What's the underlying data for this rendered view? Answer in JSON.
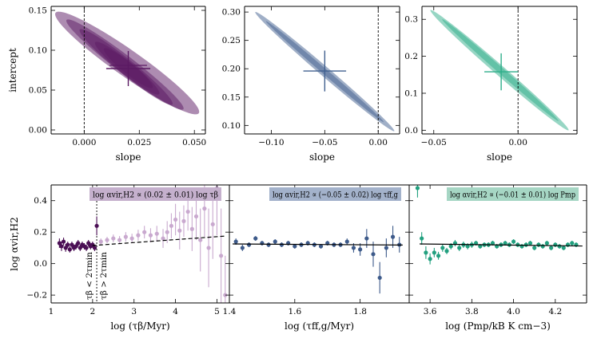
{
  "chart_data": [
    {
      "type": "scatter",
      "panel": "top-left",
      "title": "",
      "xlabel": "slope",
      "ylabel": "intercept",
      "xlim": [
        -0.015,
        0.055
      ],
      "ylim": [
        -0.005,
        0.155
      ],
      "xticks": [
        0.0,
        0.025,
        0.05
      ],
      "xtick_labels": [
        "0.000",
        "0.025",
        "0.050"
      ],
      "yticks": [
        0.0,
        0.05,
        0.1,
        0.15
      ],
      "ytick_labels": [
        "0.00",
        "0.05",
        "0.10",
        "0.15"
      ],
      "color": "#5b1a63",
      "reference_line_x": 0.0,
      "ellipses": [
        {
          "x1": -0.013,
          "y1": 0.147,
          "x2": 0.052,
          "y2": 0.021,
          "half_width": 0.006
        },
        {
          "x1": -0.008,
          "y1": 0.138,
          "x2": 0.045,
          "y2": 0.026,
          "half_width": 0.004
        },
        {
          "x1": -0.002,
          "y1": 0.126,
          "x2": 0.04,
          "y2": 0.032,
          "half_width": 0.0035
        },
        {
          "x1": 0.005,
          "y1": 0.11,
          "x2": 0.034,
          "y2": 0.045,
          "half_width": 0.003
        },
        {
          "x1": 0.009,
          "y1": 0.102,
          "x2": 0.031,
          "y2": 0.053,
          "half_width": 0.0025
        }
      ],
      "estimate": {
        "slope": 0.02,
        "slope_err": 0.01,
        "intercept": 0.077,
        "intercept_err": 0.022
      }
    },
    {
      "type": "scatter",
      "panel": "top-middle",
      "title": "",
      "xlabel": "slope",
      "ylabel": "",
      "xlim": [
        -0.125,
        0.02
      ],
      "ylim": [
        0.085,
        0.31
      ],
      "xticks": [
        -0.1,
        -0.05,
        0.0
      ],
      "xtick_labels": [
        "−0.10",
        "−0.05",
        "0.00"
      ],
      "yticks": [
        0.1,
        0.15,
        0.2,
        0.25,
        0.3
      ],
      "ytick_labels": [
        "0.10",
        "0.15",
        "0.20",
        "0.25",
        "0.30"
      ],
      "color": "#41608f",
      "reference_line_x": 0.0,
      "ellipses": [
        {
          "x1": -0.115,
          "y1": 0.3,
          "x2": 0.015,
          "y2": 0.09,
          "half_width": 0.0045
        },
        {
          "x1": -0.105,
          "y1": 0.284,
          "x2": 0.005,
          "y2": 0.106,
          "half_width": 0.0025
        }
      ],
      "estimate": {
        "slope": -0.05,
        "slope_err": 0.02,
        "intercept": 0.196,
        "intercept_err": 0.036
      }
    },
    {
      "type": "scatter",
      "panel": "top-right",
      "title": "",
      "xlabel": "slope",
      "ylabel": "",
      "xlim": [
        -0.057,
        0.035
      ],
      "ylim": [
        -0.01,
        0.335
      ],
      "xticks": [
        -0.05,
        0.0
      ],
      "xtick_labels": [
        "−0.05",
        "0.00"
      ],
      "yticks": [
        0.0,
        0.1,
        0.2,
        0.3
      ],
      "ytick_labels": [
        "0.0",
        "0.1",
        "0.2",
        "0.3"
      ],
      "color": "#2fae8a",
      "reference_line_x": 0.0,
      "ellipses": [
        {
          "x1": -0.052,
          "y1": 0.325,
          "x2": 0.03,
          "y2": 0.0,
          "half_width": 0.003
        },
        {
          "x1": -0.045,
          "y1": 0.3,
          "x2": 0.024,
          "y2": 0.025,
          "half_width": 0.0018
        }
      ],
      "estimate": {
        "slope": -0.01,
        "slope_err": 0.01,
        "intercept": 0.158,
        "intercept_err": 0.05
      }
    },
    {
      "type": "scatter",
      "panel": "bottom-left",
      "title": "",
      "xlabel": "log (τβ/Myr)",
      "ylabel": "log αvir,H2",
      "xlim": [
        1.0,
        5.3
      ],
      "ylim": [
        -0.25,
        0.5
      ],
      "xticks": [
        1,
        2,
        3,
        4,
        5
      ],
      "xtick_labels": [
        "1",
        "2",
        "3",
        "4",
        "5"
      ],
      "yticks": [
        -0.2,
        0.0,
        0.2,
        0.4
      ],
      "ytick_labels": [
        "−0.2",
        "0.0",
        "0.2",
        "0.4"
      ],
      "legend": "log αvir,H2 ∝ (0.02 ± 0.01) log τβ",
      "legend_color": "#c5b0cd",
      "annotations": [
        "τβ < 2τmin",
        "τβ > 2τmin"
      ],
      "tau_min_line_x": 2.1,
      "fit": {
        "type": "dashed",
        "x": [
          2.0,
          5.2
        ],
        "y": [
          0.115,
          0.175
        ]
      },
      "series": [
        {
          "name": "τβ < 2τmin",
          "color": "#4b0f55",
          "x": [
            1.2,
            1.25,
            1.3,
            1.35,
            1.4,
            1.45,
            1.5,
            1.55,
            1.6,
            1.65,
            1.7,
            1.75,
            1.8,
            1.85,
            1.9,
            1.95,
            2.0,
            2.05,
            2.1
          ],
          "y": [
            0.13,
            0.11,
            0.14,
            0.1,
            0.12,
            0.09,
            0.12,
            0.1,
            0.11,
            0.13,
            0.1,
            0.12,
            0.11,
            0.1,
            0.13,
            0.11,
            0.12,
            0.1,
            0.24
          ],
          "err": [
            0.03,
            0.03,
            0.025,
            0.025,
            0.02,
            0.02,
            0.02,
            0.02,
            0.02,
            0.02,
            0.02,
            0.02,
            0.02,
            0.02,
            0.02,
            0.02,
            0.02,
            0.02,
            0.06
          ]
        },
        {
          "name": "τβ > 2τmin",
          "color": "#c9a9cf",
          "x": [
            2.2,
            2.35,
            2.5,
            2.65,
            2.8,
            2.95,
            3.1,
            3.25,
            3.4,
            3.55,
            3.7,
            3.8,
            3.9,
            4.0,
            4.1,
            4.2,
            4.3,
            4.4,
            4.5,
            4.6,
            4.7,
            4.8,
            4.9,
            5.0,
            5.1,
            5.2
          ],
          "y": [
            0.14,
            0.15,
            0.16,
            0.15,
            0.17,
            0.16,
            0.18,
            0.2,
            0.18,
            0.19,
            0.16,
            0.2,
            0.24,
            0.28,
            0.21,
            0.27,
            0.33,
            0.22,
            0.3,
            0.15,
            0.35,
            0.1,
            0.25,
            0.48,
            0.05,
            -0.2
          ],
          "err": [
            0.02,
            0.02,
            0.025,
            0.025,
            0.03,
            0.03,
            0.035,
            0.04,
            0.045,
            0.05,
            0.06,
            0.07,
            0.08,
            0.1,
            0.12,
            0.1,
            0.12,
            0.14,
            0.15,
            0.2,
            0.18,
            0.25,
            0.22,
            0.3,
            0.3,
            0.25
          ]
        }
      ]
    },
    {
      "type": "scatter",
      "panel": "bottom-middle",
      "title": "",
      "xlabel": "log (τff,g/Myr)",
      "ylabel": "",
      "xlim": [
        1.4,
        1.95
      ],
      "ylim": [
        -0.25,
        0.5
      ],
      "xticks": [
        1.4,
        1.6,
        1.8
      ],
      "xtick_labels": [
        "1.4",
        "1.6",
        "1.8"
      ],
      "yticks": [
        -0.2,
        0.0,
        0.2,
        0.4
      ],
      "ytick_labels": [],
      "legend": "log αvir,H2 ∝ (−0.05 ± 0.02) log τff,g",
      "legend_color": "#a3b2cb",
      "fit": {
        "type": "solid",
        "x": [
          1.41,
          1.93
        ],
        "y": [
          0.125,
          0.118
        ]
      },
      "series": [
        {
          "name": "data",
          "color": "#3d5a8a",
          "x": [
            1.42,
            1.44,
            1.46,
            1.48,
            1.5,
            1.52,
            1.54,
            1.56,
            1.58,
            1.6,
            1.62,
            1.64,
            1.66,
            1.68,
            1.7,
            1.72,
            1.74,
            1.76,
            1.78,
            1.8,
            1.82,
            1.84,
            1.86,
            1.88,
            1.9,
            1.92
          ],
          "y": [
            0.14,
            0.1,
            0.12,
            0.16,
            0.13,
            0.12,
            0.14,
            0.12,
            0.13,
            0.11,
            0.12,
            0.13,
            0.12,
            0.11,
            0.13,
            0.12,
            0.12,
            0.14,
            0.1,
            0.09,
            0.16,
            0.06,
            -0.09,
            0.1,
            0.17,
            0.12
          ],
          "err": [
            0.02,
            0.02,
            0.015,
            0.015,
            0.015,
            0.015,
            0.015,
            0.015,
            0.015,
            0.015,
            0.015,
            0.015,
            0.015,
            0.015,
            0.015,
            0.015,
            0.015,
            0.02,
            0.03,
            0.04,
            0.06,
            0.08,
            0.1,
            0.06,
            0.07,
            0.05
          ]
        }
      ]
    },
    {
      "type": "scatter",
      "panel": "bottom-right",
      "title": "",
      "xlabel": "log (Pmp/kB K cm−3)",
      "ylabel": "",
      "xlim": [
        3.5,
        4.35
      ],
      "ylim": [
        -0.25,
        0.5
      ],
      "xticks": [
        3.6,
        3.8,
        4.0,
        4.2
      ],
      "xtick_labels": [
        "3.6",
        "3.8",
        "4.0",
        "4.2"
      ],
      "yticks": [
        -0.2,
        0.0,
        0.2,
        0.4
      ],
      "ytick_labels": [],
      "legend": "log αvir,H2 ∝ (−0.01 ± 0.01) log Pmp",
      "legend_color": "#a6d6c4",
      "fit": {
        "type": "solid",
        "x": [
          3.55,
          4.33
        ],
        "y": [
          0.125,
          0.112
        ]
      },
      "series": [
        {
          "name": "data",
          "color": "#22a07f",
          "x": [
            3.54,
            3.56,
            3.58,
            3.6,
            3.62,
            3.64,
            3.66,
            3.68,
            3.7,
            3.72,
            3.74,
            3.76,
            3.78,
            3.8,
            3.82,
            3.84,
            3.86,
            3.88,
            3.9,
            3.92,
            3.94,
            3.96,
            3.98,
            4.0,
            4.02,
            4.04,
            4.06,
            4.08,
            4.1,
            4.12,
            4.14,
            4.16,
            4.18,
            4.2,
            4.22,
            4.24,
            4.26,
            4.28,
            4.3
          ],
          "y": [
            0.48,
            0.16,
            0.07,
            0.03,
            0.07,
            0.05,
            0.1,
            0.08,
            0.11,
            0.13,
            0.1,
            0.12,
            0.11,
            0.12,
            0.13,
            0.11,
            0.12,
            0.12,
            0.13,
            0.11,
            0.12,
            0.13,
            0.12,
            0.14,
            0.12,
            0.11,
            0.12,
            0.13,
            0.1,
            0.12,
            0.11,
            0.13,
            0.1,
            0.12,
            0.11,
            0.1,
            0.12,
            0.13,
            0.12
          ],
          "err": [
            0.06,
            0.04,
            0.04,
            0.035,
            0.03,
            0.025,
            0.025,
            0.02,
            0.02,
            0.02,
            0.02,
            0.02,
            0.02,
            0.02,
            0.015,
            0.015,
            0.015,
            0.015,
            0.015,
            0.015,
            0.015,
            0.015,
            0.015,
            0.015,
            0.015,
            0.015,
            0.015,
            0.015,
            0.015,
            0.015,
            0.015,
            0.015,
            0.015,
            0.015,
            0.015,
            0.015,
            0.015,
            0.015,
            0.015
          ]
        }
      ]
    }
  ]
}
